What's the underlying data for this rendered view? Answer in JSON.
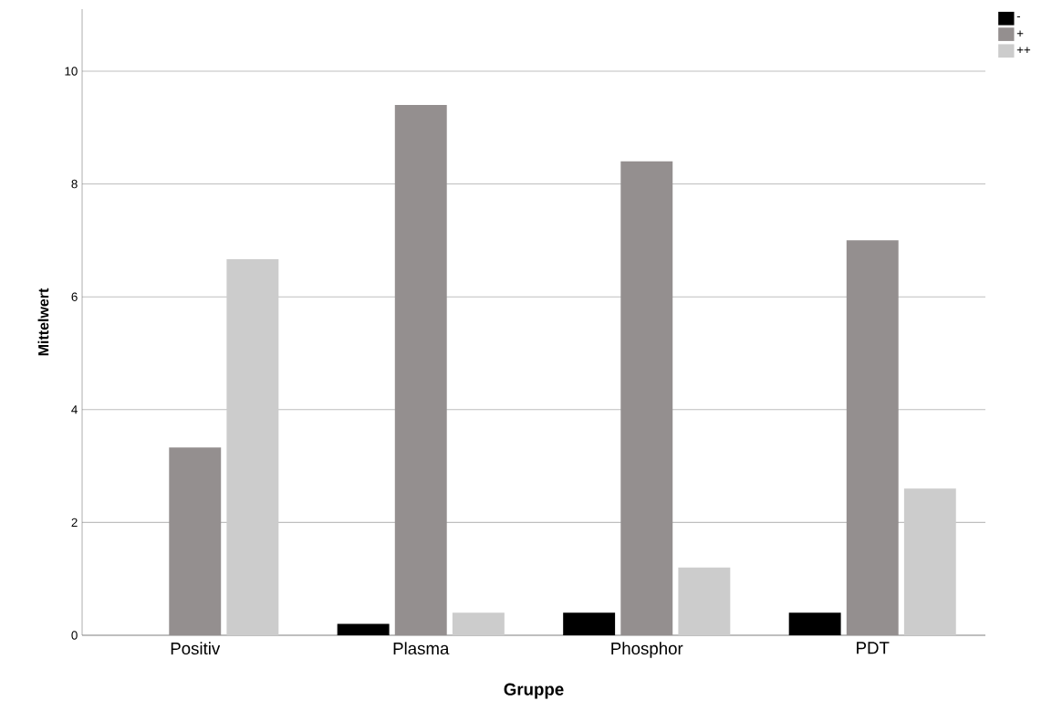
{
  "chart_data": {
    "type": "bar",
    "xlabel": "Gruppe",
    "ylabel": "Mittelwert",
    "categories": [
      "Positiv",
      "Plasma",
      "Phosphor",
      "PDT"
    ],
    "series": [
      {
        "name": "-",
        "color": "#000000",
        "values": [
          0,
          0.2,
          0.4,
          0.4
        ]
      },
      {
        "name": "+",
        "color": "#948f8f",
        "values": [
          3.33,
          9.4,
          8.4,
          7.0
        ]
      },
      {
        "name": "++",
        "color": "#cccccc",
        "values": [
          6.67,
          0.4,
          1.2,
          2.6
        ]
      }
    ],
    "ylim": [
      0,
      11.1
    ],
    "yticks": [
      0,
      2,
      4,
      6,
      8,
      10
    ],
    "grid": "y",
    "legend": "top right"
  }
}
